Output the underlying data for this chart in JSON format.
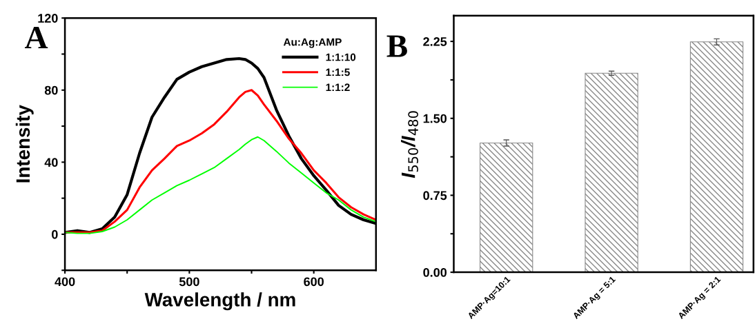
{
  "chart_data": [
    {
      "type": "line",
      "xlabel": "Wavelength / nm",
      "ylabel": "Intensity",
      "legend_title": "Au:Ag:AMP",
      "legend": "top right",
      "annotations": [
        "A"
      ],
      "x": [
        400,
        410,
        420,
        430,
        440,
        450,
        460,
        470,
        480,
        490,
        500,
        510,
        520,
        530,
        540,
        545,
        550,
        555,
        560,
        570,
        580,
        590,
        600,
        610,
        620,
        630,
        640,
        650
      ],
      "series": [
        {
          "name": "1:1:10",
          "color": "#000000",
          "values": [
            1,
            2,
            1,
            3,
            9.5,
            22,
            45,
            65,
            76,
            86,
            90,
            93,
            95,
            97,
            97.5,
            97,
            95,
            92,
            87,
            69,
            54.5,
            42,
            32.5,
            24.5,
            16,
            11,
            8,
            6
          ]
        },
        {
          "name": "1:1:5",
          "color": "#ff0000",
          "values": [
            1,
            1,
            1,
            2,
            7,
            13.5,
            26,
            35.5,
            42,
            49,
            52,
            56,
            61,
            68,
            76,
            79,
            80,
            77,
            72,
            63,
            53,
            45,
            35.5,
            28.5,
            20.5,
            15,
            11,
            8
          ]
        },
        {
          "name": "1:1:2",
          "color": "#00ff00",
          "values": [
            1,
            0.5,
            0.5,
            1.5,
            4,
            8,
            13.5,
            19,
            23,
            27,
            30,
            33.5,
            37,
            42,
            47,
            50,
            52.5,
            54,
            52,
            46,
            39.5,
            34,
            28.5,
            23,
            19,
            13.5,
            9.5,
            7
          ]
        }
      ],
      "xlim": [
        400,
        650
      ],
      "xticks": [
        400,
        {
          "value": 450,
          "label": null
        },
        500,
        {
          "value": 550,
          "label": null
        },
        600
      ],
      "ylim": [
        -20,
        120
      ],
      "yticks": [
        {
          "value": -20,
          "label": null
        },
        0,
        {
          "value": 20,
          "label": null
        },
        40,
        {
          "value": 60,
          "label": null
        },
        80,
        {
          "value": 100,
          "label": null
        },
        120
      ],
      "line_style": "solid",
      "marker": "none",
      "grid": false
    },
    {
      "type": "bar",
      "ylabel": "I$_{550}$/I$_{480}$",
      "annotations": [
        "B"
      ],
      "categories": [
        "AMP·Ag=10:1",
        "AMP·Ag = 5:1",
        "AMP·Ag = 2:1"
      ],
      "values": [
        1.26,
        1.94,
        2.245
      ],
      "errors": [
        0.03,
        0.02,
        0.03
      ],
      "color": "#888888",
      "ylim": [
        0,
        2.5
      ],
      "yticks": [
        {
          "value": 0,
          "label": "0.00"
        },
        {
          "value": 0.375,
          "label": null
        },
        0.75,
        {
          "value": 1.125,
          "label": null
        },
        {
          "value": 1.5,
          "label": "1.50"
        },
        {
          "value": 1.875,
          "label": null
        },
        2.25
      ],
      "grid": false,
      "legend": false
    }
  ]
}
